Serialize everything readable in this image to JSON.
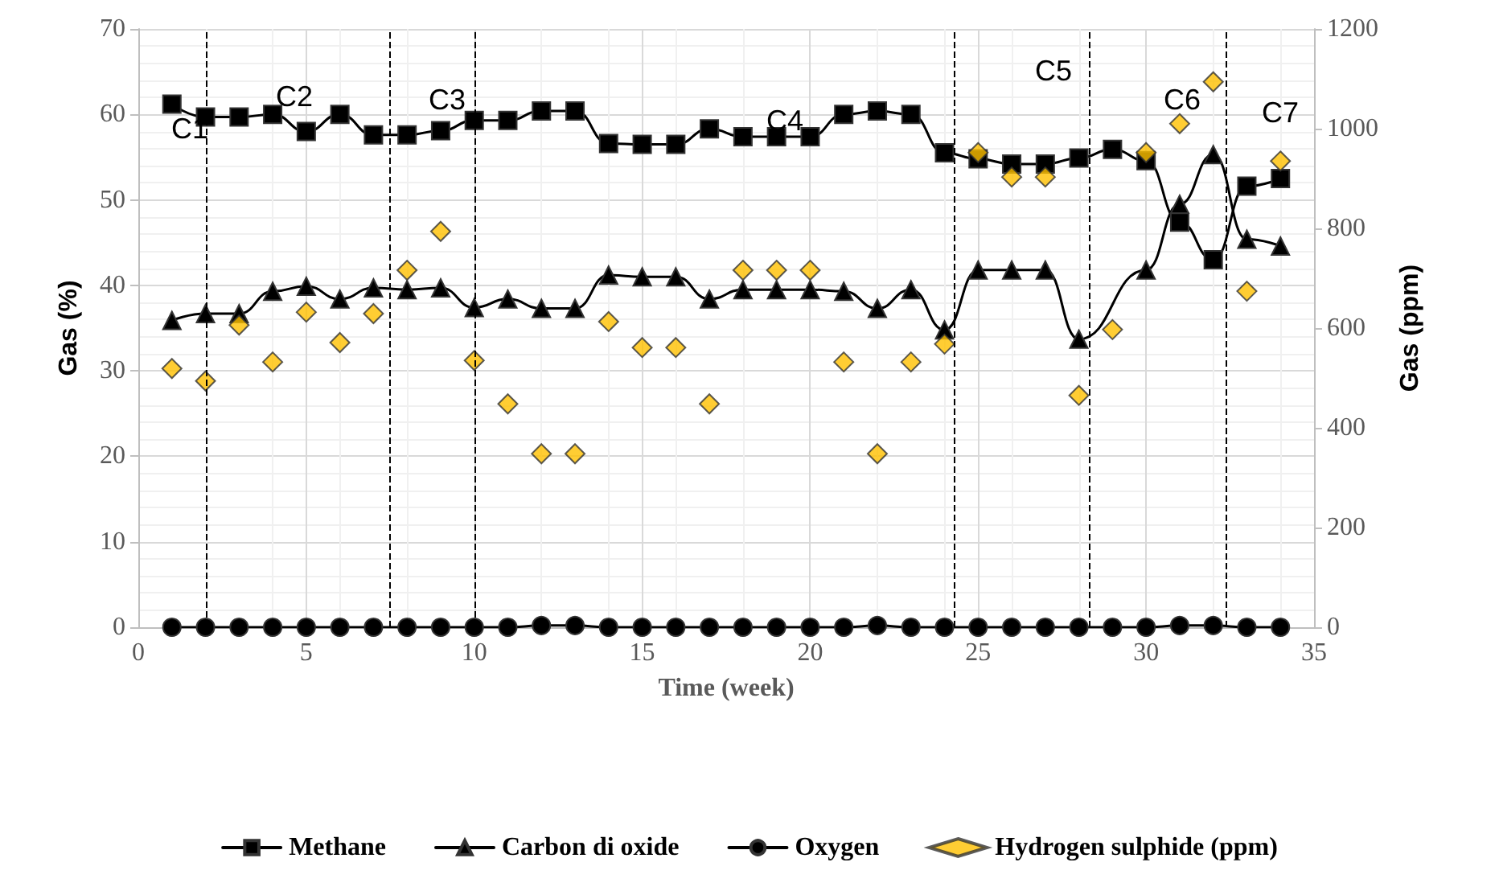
{
  "chart_data": {
    "type": "line",
    "xlabel": "Time (week)",
    "ylabel": "Gas (%)",
    "y2label": "Gas (ppm)",
    "x": [
      1,
      2,
      3,
      4,
      5,
      6,
      7,
      8,
      9,
      10,
      11,
      12,
      13,
      14,
      15,
      16,
      17,
      18,
      19,
      20,
      21,
      22,
      23,
      24,
      25,
      26,
      27,
      28,
      29,
      30,
      31,
      32,
      33,
      34
    ],
    "series": [
      {
        "name": "Methane",
        "color": "#000000",
        "marker": "square",
        "values": [
          61.2,
          59.7,
          59.7,
          60.0,
          58.0,
          60.0,
          57.6,
          57.6,
          58.1,
          59.3,
          59.3,
          60.4,
          60.4,
          56.6,
          56.5,
          56.5,
          58.3,
          57.4,
          57.4,
          57.4,
          60.0,
          60.4,
          60.0,
          55.5,
          54.8,
          54.2,
          54.2,
          54.9,
          55.9,
          54.6,
          47.4,
          43.0,
          51.6,
          52.5
        ]
      },
      {
        "name": "Carbon di oxide",
        "color": "#000000",
        "marker": "triangle",
        "values": [
          35.9,
          36.7,
          36.7,
          39.3,
          39.9,
          38.4,
          39.7,
          39.5,
          39.7,
          37.4,
          38.4,
          37.3,
          37.3,
          41.2,
          41.0,
          41.0,
          38.4,
          39.5,
          39.5,
          39.5,
          39.3,
          37.3,
          39.5,
          34.8,
          41.8,
          41.8,
          41.8,
          33.7,
          null,
          41.8,
          49.5,
          55.3,
          45.4,
          44.6
        ]
      },
      {
        "name": "Oxygen",
        "color": "#000000",
        "marker": "circle",
        "values": [
          0,
          0,
          0,
          0,
          0,
          0,
          0,
          0,
          0,
          0,
          0,
          0.2,
          0.2,
          0,
          0,
          0,
          0,
          0,
          0,
          0,
          0,
          0.2,
          0,
          0,
          0,
          0,
          0,
          0,
          0,
          0,
          0.2,
          0.2,
          0,
          0
        ]
      },
      {
        "name": "Hydrogen sulphide (ppm)",
        "type": "scatter",
        "axis": "y2",
        "color": "#ffc000",
        "marker": "diamond",
        "values": [
          519,
          494,
          606,
          532,
          632,
          571,
          629,
          716,
          794,
          535,
          448,
          348,
          348,
          613,
          561,
          561,
          448,
          716,
          716,
          716,
          532,
          348,
          532,
          568,
          952,
          903,
          903,
          465,
          597,
          952,
          1010,
          1094,
          674,
          935
        ]
      }
    ],
    "xlim": [
      0,
      35
    ],
    "xticks": [
      0,
      5,
      10,
      15,
      20,
      25,
      30,
      35
    ],
    "ylim": [
      0,
      70
    ],
    "yticks": [
      0,
      10,
      20,
      30,
      40,
      50,
      60,
      70
    ],
    "y2lim": [
      0,
      1200
    ],
    "y2ticks": [
      0,
      200,
      400,
      600,
      800,
      1000,
      1200
    ],
    "ref_lines": [
      {
        "axis": "x",
        "value": 2,
        "line_style": "dashed",
        "color": "#000000"
      },
      {
        "axis": "x",
        "value": 7.5,
        "line_style": "dashed",
        "color": "#000000"
      },
      {
        "axis": "x",
        "value": 10,
        "line_style": "dashed",
        "color": "#000000"
      },
      {
        "axis": "x",
        "value": 24.3,
        "line_style": "dashed",
        "color": "#000000"
      },
      {
        "axis": "x",
        "value": 28.3,
        "line_style": "dashed",
        "color": "#000000"
      },
      {
        "axis": "x",
        "value": 32.4,
        "line_style": "dashed",
        "color": "#000000"
      }
    ],
    "annotations": [
      "C1",
      "C2",
      "C3",
      "C4",
      "C5",
      "C6",
      "C7"
    ],
    "grid": true,
    "legend": "bottom",
    "line_style": "solid"
  }
}
